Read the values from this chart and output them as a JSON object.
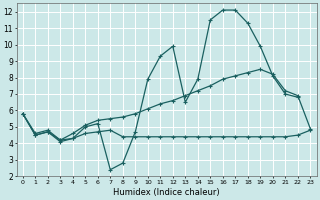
{
  "xlabel": "Humidex (Indice chaleur)",
  "bg_color": "#cce8e8",
  "grid_color": "#ffffff",
  "line_color": "#1a6060",
  "xlim": [
    -0.5,
    23.5
  ],
  "ylim": [
    2,
    12.5
  ],
  "xticks": [
    0,
    1,
    2,
    3,
    4,
    5,
    6,
    7,
    8,
    9,
    10,
    11,
    12,
    13,
    14,
    15,
    16,
    17,
    18,
    19,
    20,
    21,
    22,
    23
  ],
  "yticks": [
    2,
    3,
    4,
    5,
    6,
    7,
    8,
    9,
    10,
    11,
    12
  ],
  "curve1_x": [
    0,
    1,
    2,
    3,
    4,
    5,
    6,
    7,
    8,
    9,
    10,
    11,
    12,
    13,
    14,
    15,
    16,
    17,
    18,
    19,
    20,
    21,
    22
  ],
  "curve1_y": [
    5.8,
    4.5,
    4.7,
    4.2,
    4.3,
    5.0,
    5.2,
    2.4,
    2.8,
    4.7,
    7.9,
    9.3,
    9.9,
    6.5,
    7.9,
    11.5,
    12.1,
    12.1,
    11.3,
    9.9,
    8.1,
    7.0,
    6.8
  ],
  "curve2_x": [
    0,
    1,
    2,
    3,
    4,
    5,
    6,
    7,
    8,
    9,
    10,
    11,
    12,
    13,
    14,
    15,
    16,
    17,
    18,
    19,
    20,
    21,
    22,
    23
  ],
  "curve2_y": [
    5.8,
    4.6,
    4.8,
    4.2,
    4.6,
    5.1,
    5.4,
    5.5,
    5.6,
    5.8,
    6.1,
    6.4,
    6.6,
    6.9,
    7.2,
    7.5,
    7.9,
    8.1,
    8.3,
    8.5,
    8.2,
    7.2,
    6.9,
    4.9
  ],
  "curve3_x": [
    0,
    1,
    2,
    3,
    4,
    5,
    6,
    7,
    8,
    9,
    10,
    11,
    12,
    13,
    14,
    15,
    16,
    17,
    18,
    19,
    20,
    21,
    22,
    23
  ],
  "curve3_y": [
    5.8,
    4.5,
    4.7,
    4.1,
    4.3,
    4.6,
    4.7,
    4.8,
    4.4,
    4.4,
    4.4,
    4.4,
    4.4,
    4.4,
    4.4,
    4.4,
    4.4,
    4.4,
    4.4,
    4.4,
    4.4,
    4.4,
    4.5,
    4.8
  ]
}
